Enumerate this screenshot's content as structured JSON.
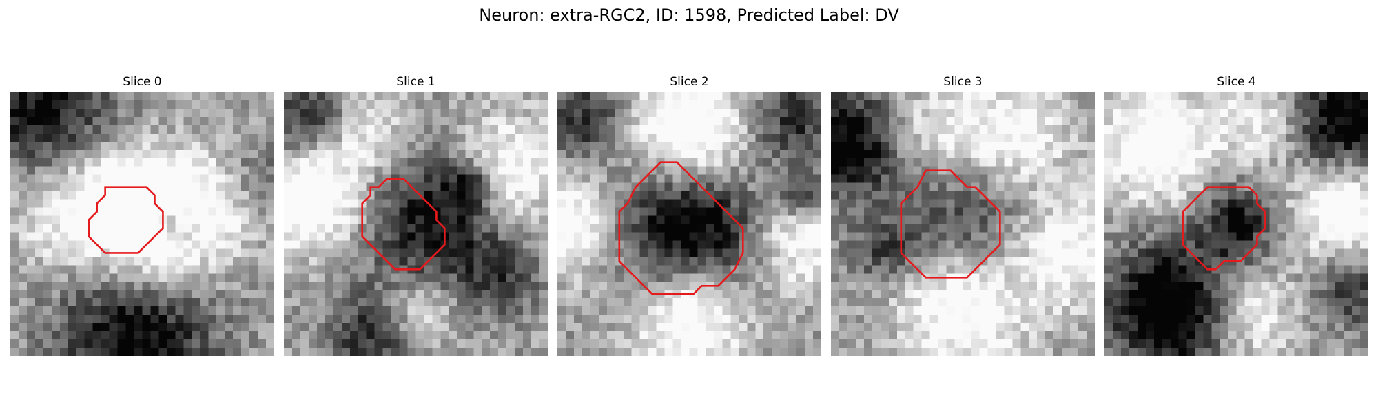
{
  "figure": {
    "title": "Neuron: extra-RGC2, ID: 1598, Predicted Label: DV"
  },
  "panels": [
    {
      "title": "Slice 0",
      "roi_color": "#e41a1c",
      "roi": [
        [
          13.5,
          11.5
        ],
        [
          16.5,
          11.5
        ],
        [
          17.5,
          12.5
        ],
        [
          17.5,
          13.5
        ],
        [
          18.5,
          14.5
        ],
        [
          18.5,
          16.5
        ],
        [
          17.5,
          17.5
        ],
        [
          16.5,
          18.5
        ],
        [
          15.5,
          19.5
        ],
        [
          11.5,
          19.5
        ],
        [
          10.5,
          18.5
        ],
        [
          9.5,
          17.5
        ],
        [
          9.5,
          15.5
        ],
        [
          10.5,
          14.5
        ],
        [
          10.5,
          13.5
        ],
        [
          11.5,
          12.5
        ],
        [
          11.5,
          11.5
        ]
      ],
      "bright": [
        [
          0.55,
          0.6,
          0.55,
          0.16
        ],
        [
          0.25,
          0.45,
          0.45,
          0.16
        ],
        [
          0.8,
          0.4,
          0.5,
          0.14
        ],
        [
          0.5,
          0.38,
          0.45,
          0.13
        ]
      ],
      "dark": [
        [
          0.12,
          0.06,
          0.6,
          0.18
        ],
        [
          0.48,
          0.9,
          0.7,
          0.2
        ],
        [
          0.9,
          0.35,
          0.4,
          0.12
        ],
        [
          0.62,
          0.5,
          0.5,
          0.06
        ]
      ]
    },
    {
      "title": "Slice 1",
      "roi_color": "#e41a1c",
      "roi": [
        [
          12.5,
          10.5
        ],
        [
          14.5,
          10.5
        ],
        [
          15.5,
          11.5
        ],
        [
          16.5,
          12.5
        ],
        [
          18.5,
          14.5
        ],
        [
          18.5,
          15.5
        ],
        [
          19.5,
          16.5
        ],
        [
          19.5,
          18.5
        ],
        [
          17.5,
          20.5
        ],
        [
          16.5,
          21.5
        ],
        [
          13.5,
          21.5
        ],
        [
          12.5,
          20.5
        ],
        [
          11.5,
          19.5
        ],
        [
          9.5,
          17.5
        ],
        [
          9.5,
          13.5
        ],
        [
          10.5,
          12.5
        ],
        [
          10.5,
          11.5
        ],
        [
          11.5,
          11.5
        ]
      ],
      "bright": [
        [
          0.1,
          0.4,
          0.65,
          0.14
        ],
        [
          0.85,
          0.3,
          0.5,
          0.15
        ],
        [
          0.5,
          0.85,
          0.4,
          0.1
        ],
        [
          0.3,
          0.15,
          0.4,
          0.12
        ]
      ],
      "dark": [
        [
          0.58,
          0.48,
          0.6,
          0.18
        ],
        [
          0.1,
          0.1,
          0.5,
          0.12
        ],
        [
          0.35,
          0.92,
          0.5,
          0.12
        ],
        [
          0.82,
          0.7,
          0.35,
          0.1
        ],
        [
          0.7,
          0.35,
          0.45,
          0.06
        ]
      ]
    },
    {
      "title": "Slice 2",
      "roi_color": "#e41a1c",
      "roi": [
        [
          12.5,
          8.5
        ],
        [
          14.5,
          8.5
        ],
        [
          15.5,
          9.5
        ],
        [
          16.5,
          10.5
        ],
        [
          17.5,
          11.5
        ],
        [
          18.5,
          12.5
        ],
        [
          19.5,
          13.5
        ],
        [
          21.5,
          15.5
        ],
        [
          22.5,
          16.5
        ],
        [
          22.5,
          19.5
        ],
        [
          21.5,
          21.5
        ],
        [
          20.5,
          22.5
        ],
        [
          19.5,
          23.5
        ],
        [
          17.5,
          23.5
        ],
        [
          16.5,
          24.5
        ],
        [
          11.5,
          24.5
        ],
        [
          10.5,
          23.5
        ],
        [
          9.5,
          22.5
        ],
        [
          7.5,
          20.5
        ],
        [
          7.5,
          14.5
        ],
        [
          8.5,
          13.5
        ],
        [
          9.5,
          11.5
        ],
        [
          10.5,
          10.5
        ],
        [
          11.5,
          9.5
        ]
      ],
      "bright": [
        [
          0.5,
          0.15,
          0.7,
          0.16
        ],
        [
          0.5,
          0.82,
          0.75,
          0.16
        ],
        [
          0.05,
          0.5,
          0.55,
          0.14
        ],
        [
          0.92,
          0.55,
          0.5,
          0.14
        ]
      ],
      "dark": [
        [
          0.5,
          0.55,
          0.85,
          0.2
        ],
        [
          0.1,
          0.1,
          0.45,
          0.12
        ],
        [
          0.9,
          0.1,
          0.45,
          0.12
        ],
        [
          0.93,
          0.4,
          0.55,
          0.06
        ]
      ]
    },
    {
      "title": "Slice 3",
      "roi_color": "#e41a1c",
      "roi": [
        [
          11.5,
          9.5
        ],
        [
          14.5,
          9.5
        ],
        [
          15.5,
          10.5
        ],
        [
          16.5,
          11.5
        ],
        [
          17.5,
          11.5
        ],
        [
          18.5,
          12.5
        ],
        [
          20.5,
          14.5
        ],
        [
          20.5,
          18.5
        ],
        [
          18.5,
          20.5
        ],
        [
          16.5,
          22.5
        ],
        [
          11.5,
          22.5
        ],
        [
          9.5,
          20.5
        ],
        [
          8.5,
          19.5
        ],
        [
          8.5,
          13.5
        ],
        [
          9.5,
          12.5
        ],
        [
          10.5,
          11.5
        ]
      ],
      "bright": [
        [
          0.5,
          0.8,
          0.6,
          0.17
        ],
        [
          0.7,
          0.15,
          0.45,
          0.14
        ],
        [
          0.9,
          0.6,
          0.45,
          0.15
        ],
        [
          0.4,
          0.15,
          0.35,
          0.12
        ]
      ],
      "dark": [
        [
          0.05,
          0.2,
          0.7,
          0.14
        ],
        [
          0.5,
          0.52,
          0.4,
          0.18
        ],
        [
          0.2,
          0.6,
          0.35,
          0.08
        ]
      ]
    },
    {
      "title": "Slice 4",
      "roi_color": "#e41a1c",
      "roi": [
        [
          12.5,
          11.5
        ],
        [
          17.5,
          11.5
        ],
        [
          18.5,
          12.5
        ],
        [
          18.5,
          13.5
        ],
        [
          19.5,
          14.5
        ],
        [
          19.5,
          16.5
        ],
        [
          18.5,
          17.5
        ],
        [
          18.5,
          18.5
        ],
        [
          17.5,
          19.5
        ],
        [
          16.5,
          20.5
        ],
        [
          14.5,
          20.5
        ],
        [
          13.5,
          21.5
        ],
        [
          12.5,
          21.5
        ],
        [
          11.5,
          20.5
        ],
        [
          10.5,
          19.5
        ],
        [
          9.5,
          18.5
        ],
        [
          9.5,
          14.5
        ],
        [
          10.5,
          13.5
        ],
        [
          11.5,
          12.5
        ]
      ],
      "bright": [
        [
          0.2,
          0.2,
          0.6,
          0.15
        ],
        [
          0.9,
          0.45,
          0.55,
          0.13
        ],
        [
          0.55,
          0.85,
          0.4,
          0.12
        ],
        [
          0.6,
          0.1,
          0.35,
          0.12
        ]
      ],
      "dark": [
        [
          0.25,
          0.82,
          0.85,
          0.16
        ],
        [
          0.9,
          0.1,
          0.7,
          0.14
        ],
        [
          0.5,
          0.5,
          0.55,
          0.1
        ],
        [
          0.95,
          0.75,
          0.4,
          0.1
        ]
      ]
    }
  ]
}
